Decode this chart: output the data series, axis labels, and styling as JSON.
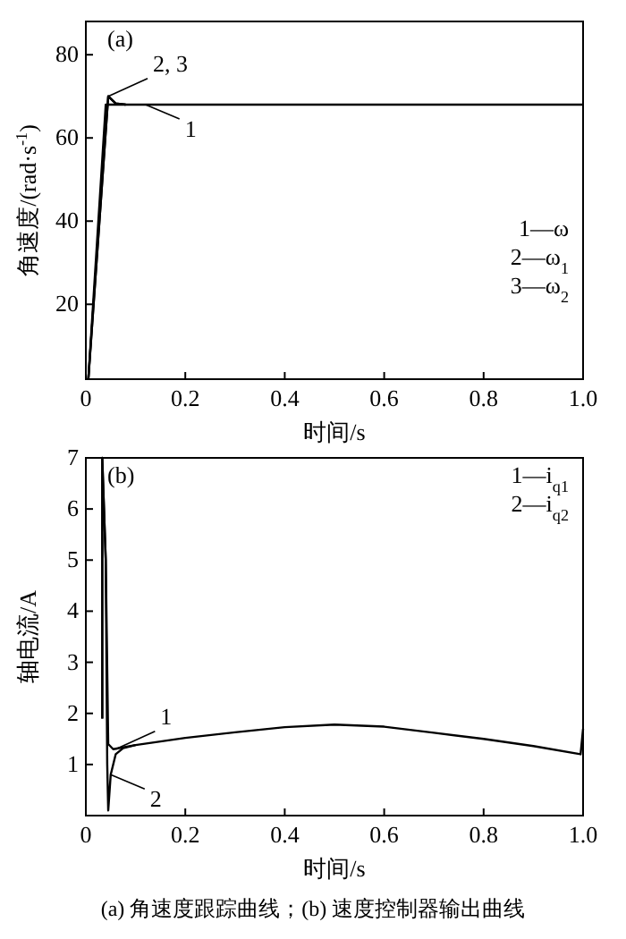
{
  "chart_data": [
    {
      "type": "line",
      "title": "(a)",
      "xlabel": "时间/s",
      "ylabel": "角速度/(rad·s$^{-1}$)",
      "xlim": [
        0,
        1
      ],
      "ylim": [
        2,
        88
      ],
      "xticks": [
        0,
        0.2,
        0.4,
        0.6,
        0.8,
        {
          "value": 1,
          "label": "1.0"
        }
      ],
      "yticks": [
        20,
        40,
        60,
        80
      ],
      "series": [
        {
          "color": "#000000",
          "x": [
            0.005,
            0.04,
            0.1,
            0.3,
            0.5,
            0.7,
            0.9,
            1.0
          ],
          "values": [
            2,
            68,
            68,
            68,
            68,
            68,
            68,
            68
          ]
        },
        {
          "color": "#000000",
          "x": [
            0.005,
            0.045,
            0.06,
            0.08
          ],
          "values": [
            2,
            70,
            68.3,
            68
          ]
        },
        {
          "color": "#000000",
          "x": [
            0.005,
            0.045,
            0.06,
            0.08
          ],
          "values": [
            2,
            70,
            68.3,
            68
          ]
        }
      ],
      "annotations": [
        {
          "text": "2, 3",
          "x": 0.045,
          "y": 70
        },
        {
          "text": "1",
          "x": 0.12,
          "y": 68
        },
        "1—ω",
        "2—ω$_{1}$",
        "3—ω$_{2}$"
      ]
    },
    {
      "type": "line",
      "title": "(b)",
      "xlabel": "时间/s",
      "ylabel": "轴电流/A",
      "xlim": [
        0,
        1
      ],
      "ylim": [
        0,
        7
      ],
      "xticks": [
        0,
        0.2,
        0.4,
        0.6,
        0.8,
        {
          "value": 1,
          "label": "1.0"
        }
      ],
      "yticks": [
        1,
        2,
        3,
        4,
        5,
        6,
        7
      ],
      "series": [
        {
          "color": "#000000",
          "x": [
            0.033,
            0.033,
            0.04,
            0.045,
            0.055,
            0.1,
            0.2,
            0.3,
            0.4,
            0.5,
            0.6,
            0.7,
            0.8,
            0.9,
            0.995,
            1.0
          ],
          "values": [
            1.9,
            7,
            5,
            1.4,
            1.3,
            1.38,
            1.52,
            1.63,
            1.73,
            1.78,
            1.74,
            1.62,
            1.5,
            1.36,
            1.2,
            1.7
          ]
        },
        {
          "color": "#000000",
          "x": [
            0.033,
            0.033,
            0.04,
            0.043,
            0.045,
            0.05,
            0.06,
            0.075,
            0.1
          ],
          "values": [
            1.9,
            7,
            5,
            1,
            0.1,
            0.8,
            1.2,
            1.32,
            1.38
          ]
        }
      ],
      "annotations": [
        {
          "text": "1",
          "x": 0.06,
          "y": 1.3
        },
        {
          "text": "2",
          "x": 0.05,
          "y": 0.8
        },
        "1—i$_{q1}$",
        "2—i$_{q2}$",
        "(a) 角速度跟踪曲线；(b) 速度控制器输出曲线"
      ]
    }
  ]
}
